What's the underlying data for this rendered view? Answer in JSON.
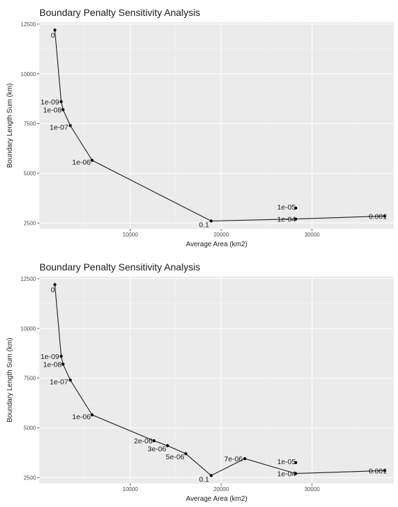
{
  "chart_data": [
    {
      "type": "line",
      "title": "Boundary Penalty Sensitivity Analysis",
      "xlabel": "Average Area (km2)",
      "ylabel": "Boundary Length Sum (km)",
      "xlim": [
        0,
        39000
      ],
      "ylim": [
        2200,
        12600
      ],
      "xticks": [
        10000,
        20000,
        30000
      ],
      "yticks": [
        2500,
        5000,
        7500,
        10000,
        12500
      ],
      "grid": true,
      "series": [
        {
          "points": [
            {
              "x": 1700,
              "y": 12200,
              "label": "0"
            },
            {
              "x": 2400,
              "y": 8600,
              "label": "1e-09"
            },
            {
              "x": 2600,
              "y": 8200,
              "label": "1e-08"
            },
            {
              "x": 3400,
              "y": 7400,
              "label": "1e-07"
            },
            {
              "x": 5800,
              "y": 5650,
              "label": "1e-06"
            },
            {
              "x": 18900,
              "y": 2600,
              "label": "0.1"
            },
            {
              "x": 28200,
              "y": 2700,
              "label": "1e-04"
            },
            {
              "x": 28200,
              "y": 3250,
              "label": "1e-05"
            },
            {
              "x": 38000,
              "y": 2850,
              "label": "0.001"
            }
          ],
          "line_order": [
            0,
            1,
            2,
            3,
            4,
            5,
            6,
            8
          ]
        }
      ]
    },
    {
      "type": "line",
      "title": "Boundary Penalty Sensitivity Analysis",
      "xlabel": "Average Area (km2)",
      "ylabel": "Boundary Length Sum (km)",
      "xlim": [
        0,
        39000
      ],
      "ylim": [
        2200,
        12600
      ],
      "xticks": [
        10000,
        20000,
        30000
      ],
      "yticks": [
        2500,
        5000,
        7500,
        10000,
        12500
      ],
      "grid": true,
      "series": [
        {
          "points": [
            {
              "x": 1700,
              "y": 12200,
              "label": "0"
            },
            {
              "x": 2400,
              "y": 8600,
              "label": "1e-09"
            },
            {
              "x": 2600,
              "y": 8200,
              "label": "1e-08"
            },
            {
              "x": 3400,
              "y": 7400,
              "label": "1e-07"
            },
            {
              "x": 5800,
              "y": 5650,
              "label": "1e-06"
            },
            {
              "x": 12600,
              "y": 4350,
              "label": "2e-06"
            },
            {
              "x": 14100,
              "y": 4100,
              "label": "3e-06"
            },
            {
              "x": 16100,
              "y": 3700,
              "label": "5e-06"
            },
            {
              "x": 18900,
              "y": 2600,
              "label": "0.1"
            },
            {
              "x": 22600,
              "y": 3450,
              "label": "7e-06"
            },
            {
              "x": 28200,
              "y": 2700,
              "label": "1e-04"
            },
            {
              "x": 28200,
              "y": 3250,
              "label": "1e-05"
            },
            {
              "x": 38000,
              "y": 2850,
              "label": "0.001"
            }
          ],
          "line_order": [
            0,
            1,
            2,
            3,
            4,
            5,
            6,
            7,
            8,
            9,
            10,
            12
          ]
        }
      ]
    }
  ],
  "colors": {
    "panel_background": "#ebebeb",
    "grid_major": "#ffffff",
    "grid_minor": "#f4f4f4",
    "line": "#1a1a1a",
    "point": "#000000",
    "text": "#1a1a1a",
    "tick_text": "#4d4d4d"
  }
}
